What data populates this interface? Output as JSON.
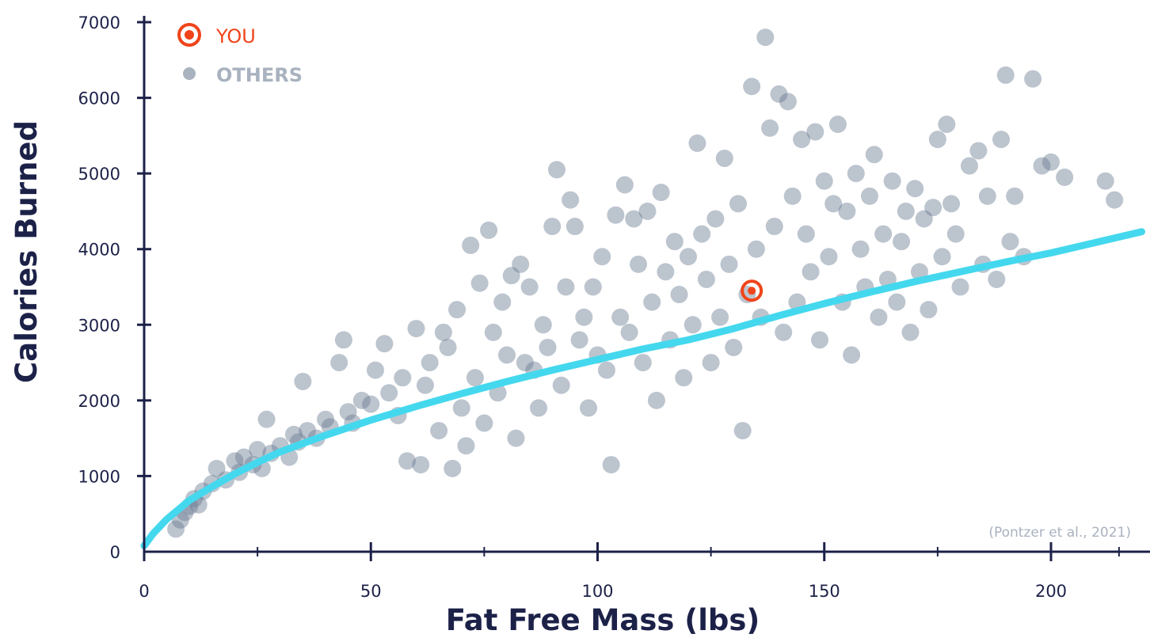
{
  "chart_data": {
    "type": "scatter",
    "title": "",
    "xlabel": "Fat Free Mass (lbs)",
    "ylabel": "Calories Burned",
    "xlim": [
      0,
      220
    ],
    "ylim": [
      0,
      7000
    ],
    "xticks": [
      "0",
      "50",
      "100",
      "150",
      "200"
    ],
    "yticks": [
      "0",
      "1000",
      "2000",
      "3000",
      "4000",
      "5000",
      "6000",
      "7000"
    ],
    "grid": false,
    "legend_position": "top-left",
    "legend": [
      {
        "label": "YOU",
        "color": "#f0441a",
        "icon": "target-icon"
      },
      {
        "label": "OTHERS",
        "color": "#a9b2bf",
        "icon": "dot-icon"
      }
    ],
    "series": [
      {
        "name": "OTHERS",
        "color": "#6a7c92",
        "points": [
          [
            7,
            300
          ],
          [
            8,
            420
          ],
          [
            9,
            520
          ],
          [
            10,
            600
          ],
          [
            11,
            700
          ],
          [
            12,
            620
          ],
          [
            13,
            800
          ],
          [
            15,
            900
          ],
          [
            16,
            1100
          ],
          [
            18,
            950
          ],
          [
            20,
            1200
          ],
          [
            21,
            1050
          ],
          [
            22,
            1250
          ],
          [
            24,
            1150
          ],
          [
            25,
            1350
          ],
          [
            26,
            1100
          ],
          [
            27,
            1750
          ],
          [
            28,
            1300
          ],
          [
            30,
            1400
          ],
          [
            32,
            1250
          ],
          [
            33,
            1550
          ],
          [
            34,
            1450
          ],
          [
            35,
            2250
          ],
          [
            36,
            1600
          ],
          [
            38,
            1500
          ],
          [
            40,
            1750
          ],
          [
            41,
            1650
          ],
          [
            43,
            2500
          ],
          [
            44,
            2800
          ],
          [
            45,
            1850
          ],
          [
            46,
            1700
          ],
          [
            48,
            2000
          ],
          [
            50,
            1950
          ],
          [
            51,
            2400
          ],
          [
            53,
            2750
          ],
          [
            54,
            2100
          ],
          [
            56,
            1800
          ],
          [
            57,
            2300
          ],
          [
            58,
            1200
          ],
          [
            60,
            2950
          ],
          [
            61,
            1150
          ],
          [
            62,
            2200
          ],
          [
            63,
            2500
          ],
          [
            65,
            1600
          ],
          [
            66,
            2900
          ],
          [
            67,
            2700
          ],
          [
            68,
            1100
          ],
          [
            69,
            3200
          ],
          [
            70,
            1900
          ],
          [
            71,
            1400
          ],
          [
            72,
            4050
          ],
          [
            73,
            2300
          ],
          [
            74,
            3550
          ],
          [
            75,
            1700
          ],
          [
            76,
            4250
          ],
          [
            77,
            2900
          ],
          [
            78,
            2100
          ],
          [
            79,
            3300
          ],
          [
            80,
            2600
          ],
          [
            81,
            3650
          ],
          [
            82,
            1500
          ],
          [
            83,
            3800
          ],
          [
            84,
            2500
          ],
          [
            85,
            3500
          ],
          [
            86,
            2400
          ],
          [
            87,
            1900
          ],
          [
            88,
            3000
          ],
          [
            89,
            2700
          ],
          [
            90,
            4300
          ],
          [
            91,
            5050
          ],
          [
            92,
            2200
          ],
          [
            93,
            3500
          ],
          [
            94,
            4650
          ],
          [
            95,
            4300
          ],
          [
            96,
            2800
          ],
          [
            97,
            3100
          ],
          [
            98,
            1900
          ],
          [
            99,
            3500
          ],
          [
            100,
            2600
          ],
          [
            101,
            3900
          ],
          [
            102,
            2400
          ],
          [
            103,
            1150
          ],
          [
            104,
            4450
          ],
          [
            105,
            3100
          ],
          [
            106,
            4850
          ],
          [
            107,
            2900
          ],
          [
            108,
            4400
          ],
          [
            109,
            3800
          ],
          [
            110,
            2500
          ],
          [
            111,
            4500
          ],
          [
            112,
            3300
          ],
          [
            113,
            2000
          ],
          [
            114,
            4750
          ],
          [
            115,
            3700
          ],
          [
            116,
            2800
          ],
          [
            117,
            4100
          ],
          [
            118,
            3400
          ],
          [
            119,
            2300
          ],
          [
            120,
            3900
          ],
          [
            121,
            3000
          ],
          [
            122,
            5400
          ],
          [
            123,
            4200
          ],
          [
            124,
            3600
          ],
          [
            125,
            2500
          ],
          [
            126,
            4400
          ],
          [
            127,
            3100
          ],
          [
            128,
            5200
          ],
          [
            129,
            3800
          ],
          [
            130,
            2700
          ],
          [
            131,
            4600
          ],
          [
            132,
            1600
          ],
          [
            133,
            3400
          ],
          [
            134,
            6150
          ],
          [
            135,
            4000
          ],
          [
            136,
            3100
          ],
          [
            137,
            6800
          ],
          [
            138,
            5600
          ],
          [
            139,
            4300
          ],
          [
            140,
            6050
          ],
          [
            141,
            2900
          ],
          [
            142,
            5950
          ],
          [
            143,
            4700
          ],
          [
            144,
            3300
          ],
          [
            145,
            5450
          ],
          [
            146,
            4200
          ],
          [
            147,
            3700
          ],
          [
            148,
            5550
          ],
          [
            149,
            2800
          ],
          [
            150,
            4900
          ],
          [
            151,
            3900
          ],
          [
            152,
            4600
          ],
          [
            153,
            5650
          ],
          [
            154,
            3300
          ],
          [
            155,
            4500
          ],
          [
            156,
            2600
          ],
          [
            157,
            5000
          ],
          [
            158,
            4000
          ],
          [
            159,
            3500
          ],
          [
            160,
            4700
          ],
          [
            161,
            5250
          ],
          [
            162,
            3100
          ],
          [
            163,
            4200
          ],
          [
            164,
            3600
          ],
          [
            165,
            4900
          ],
          [
            166,
            3300
          ],
          [
            167,
            4100
          ],
          [
            168,
            4500
          ],
          [
            169,
            2900
          ],
          [
            170,
            4800
          ],
          [
            171,
            3700
          ],
          [
            172,
            4400
          ],
          [
            173,
            3200
          ],
          [
            174,
            4550
          ],
          [
            175,
            5450
          ],
          [
            176,
            3900
          ],
          [
            177,
            5650
          ],
          [
            178,
            4600
          ],
          [
            179,
            4200
          ],
          [
            180,
            3500
          ],
          [
            182,
            5100
          ],
          [
            184,
            5300
          ],
          [
            185,
            3800
          ],
          [
            186,
            4700
          ],
          [
            188,
            3600
          ],
          [
            189,
            5450
          ],
          [
            190,
            6300
          ],
          [
            191,
            4100
          ],
          [
            192,
            4700
          ],
          [
            194,
            3900
          ],
          [
            196,
            6250
          ],
          [
            198,
            5100
          ],
          [
            200,
            5150
          ],
          [
            203,
            4950
          ],
          [
            212,
            4900
          ],
          [
            214,
            4650
          ]
        ]
      },
      {
        "name": "YOU",
        "color": "#f0441a",
        "points": [
          [
            134,
            3450
          ]
        ]
      },
      {
        "name": "trend",
        "color": "#44d8ee",
        "points": [
          [
            0,
            80
          ],
          [
            2,
            240
          ],
          [
            5,
            430
          ],
          [
            10,
            680
          ],
          [
            15,
            860
          ],
          [
            20,
            1030
          ],
          [
            25,
            1180
          ],
          [
            30,
            1320
          ],
          [
            40,
            1540
          ],
          [
            50,
            1740
          ],
          [
            60,
            1920
          ],
          [
            70,
            2090
          ],
          [
            80,
            2250
          ],
          [
            90,
            2400
          ],
          [
            100,
            2540
          ],
          [
            110,
            2680
          ],
          [
            120,
            2800
          ],
          [
            130,
            2950
          ],
          [
            140,
            3120
          ],
          [
            150,
            3280
          ],
          [
            160,
            3430
          ],
          [
            170,
            3570
          ],
          [
            180,
            3700
          ],
          [
            190,
            3830
          ],
          [
            200,
            3950
          ],
          [
            210,
            4090
          ],
          [
            220,
            4230
          ]
        ]
      }
    ],
    "annotations": [
      "(Pontzer et al., 2021)"
    ]
  }
}
